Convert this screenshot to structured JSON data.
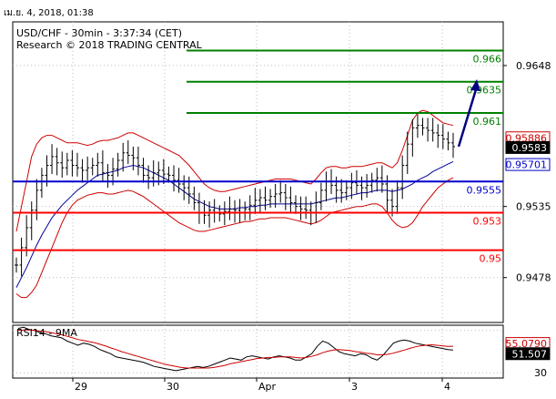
{
  "header": {
    "datetime": "เม.ย. 4, 2018, 01:38",
    "instrument": "USD/CHF - 30min - 3:37:34 (CET)",
    "copyright": "Research © 2018 TRADING CENTRAL"
  },
  "chart_data": [
    {
      "type": "candlestick",
      "title": "USD/CHF - 30min - 3:37:34 (CET)",
      "ylim": [
        0.9442,
        0.9683
      ],
      "x_tick_labels": [
        "29",
        "30",
        "Apr",
        "3",
        "4"
      ],
      "y_tick_labels": [
        "0.9648",
        "0.9535",
        "0.9478"
      ],
      "y_ticks": [
        0.9648,
        0.9535,
        0.9478
      ],
      "grid": true,
      "levels": [
        {
          "label": "0.966",
          "value": 0.966,
          "color": "#008000"
        },
        {
          "label": "0.9635",
          "value": 0.9635,
          "color": "#008000"
        },
        {
          "label": "0.961",
          "value": 0.961,
          "color": "#008000"
        },
        {
          "label": "0.9555",
          "value": 0.9555,
          "color": "#0000cc"
        },
        {
          "label": "0.953",
          "value": 0.953,
          "color": "#ff0000"
        },
        {
          "label": "0.95",
          "value": 0.95,
          "color": "#ff0000"
        }
      ],
      "price_tags": [
        {
          "label": "0.95886",
          "value": 0.95886,
          "bg": "#ffffff",
          "fg": "#cc0000",
          "border": "#cc0000"
        },
        {
          "label": "0.9583",
          "value": 0.9583,
          "bg": "#000000",
          "fg": "#ffffff",
          "border": "#000000"
        },
        {
          "label": "0.95701",
          "value": 0.95701,
          "bg": "#ffffff",
          "fg": "#0000cc",
          "border": "#0000cc"
        }
      ],
      "close_series": [
        0.9488,
        0.9502,
        0.9518,
        0.9532,
        0.9548,
        0.956,
        0.9568,
        0.9575,
        0.957,
        0.9566,
        0.9572,
        0.9568,
        0.9566,
        0.9564,
        0.9566,
        0.9568,
        0.957,
        0.9562,
        0.956,
        0.9565,
        0.9572,
        0.9578,
        0.9576,
        0.9574,
        0.9568,
        0.956,
        0.9558,
        0.9562,
        0.9564,
        0.9561,
        0.956,
        0.9556,
        0.9553,
        0.955,
        0.9545,
        0.9538,
        0.953,
        0.9528,
        0.9532,
        0.953,
        0.9529,
        0.9531,
        0.9533,
        0.9532,
        0.953,
        0.9533,
        0.9536,
        0.954,
        0.9542,
        0.954,
        0.9543,
        0.9545,
        0.9546,
        0.9542,
        0.9538,
        0.9535,
        0.9533,
        0.9532,
        0.953,
        0.9538,
        0.9548,
        0.9555,
        0.9552,
        0.9548,
        0.9546,
        0.955,
        0.9554,
        0.9552,
        0.955,
        0.9552,
        0.9556,
        0.9558,
        0.9553,
        0.954,
        0.9535,
        0.955,
        0.9568,
        0.9585,
        0.9598,
        0.96,
        0.9598,
        0.9596,
        0.9594,
        0.9592,
        0.9589,
        0.9586,
        0.9583
      ],
      "moving_average": [
        0.947,
        0.9478,
        0.9486,
        0.9495,
        0.9504,
        0.9512,
        0.9519,
        0.9526,
        0.9531,
        0.9536,
        0.954,
        0.9544,
        0.9548,
        0.9551,
        0.9554,
        0.9557,
        0.956,
        0.9561,
        0.9562,
        0.9563,
        0.9564,
        0.9566,
        0.9567,
        0.9568,
        0.9567,
        0.9566,
        0.9564,
        0.9562,
        0.956,
        0.9558,
        0.9556,
        0.9553,
        0.955,
        0.9547,
        0.9544,
        0.9541,
        0.9539,
        0.9537,
        0.9535,
        0.9534,
        0.9533,
        0.9533,
        0.9533,
        0.9533,
        0.9534,
        0.9534,
        0.9535,
        0.9535,
        0.9536,
        0.9536,
        0.9537,
        0.9537,
        0.9537,
        0.9537,
        0.9537,
        0.9537,
        0.9537,
        0.9537,
        0.9537,
        0.9538,
        0.9539,
        0.954,
        0.9541,
        0.9542,
        0.9542,
        0.9543,
        0.9544,
        0.9545,
        0.9546,
        0.9546,
        0.9547,
        0.9548,
        0.9548,
        0.9548,
        0.9547,
        0.9548,
        0.9549,
        0.9551,
        0.9553,
        0.9556,
        0.9558,
        0.956,
        0.9563,
        0.9565,
        0.9567,
        0.9569,
        0.9571
      ],
      "bands_upper": [
        0.9515,
        0.9535,
        0.9555,
        0.9575,
        0.9585,
        0.959,
        0.9592,
        0.9592,
        0.959,
        0.9588,
        0.9586,
        0.9586,
        0.9586,
        0.9585,
        0.9584,
        0.9585,
        0.9587,
        0.9588,
        0.9588,
        0.9589,
        0.959,
        0.9592,
        0.9594,
        0.9594,
        0.9592,
        0.959,
        0.9588,
        0.9586,
        0.9584,
        0.9582,
        0.958,
        0.9578,
        0.9576,
        0.9572,
        0.9568,
        0.9563,
        0.9558,
        0.9553,
        0.955,
        0.9548,
        0.9547,
        0.9547,
        0.9548,
        0.9549,
        0.955,
        0.9551,
        0.9552,
        0.9553,
        0.9554,
        0.9555,
        0.9556,
        0.9557,
        0.9557,
        0.9557,
        0.9557,
        0.9556,
        0.9555,
        0.9554,
        0.9553,
        0.9557,
        0.9562,
        0.9566,
        0.9567,
        0.9567,
        0.9566,
        0.9566,
        0.9567,
        0.9567,
        0.9567,
        0.9568,
        0.9569,
        0.957,
        0.957,
        0.9568,
        0.9566,
        0.957,
        0.958,
        0.9592,
        0.9604,
        0.961,
        0.9612,
        0.9611,
        0.9608,
        0.9605,
        0.9602,
        0.9601,
        0.96
      ],
      "bands_lower": [
        0.9465,
        0.9462,
        0.9462,
        0.9466,
        0.9472,
        0.9482,
        0.9492,
        0.9502,
        0.9512,
        0.9522,
        0.953,
        0.9536,
        0.954,
        0.9542,
        0.9544,
        0.9545,
        0.9546,
        0.9546,
        0.9545,
        0.9545,
        0.9546,
        0.9547,
        0.9548,
        0.9547,
        0.9545,
        0.9543,
        0.954,
        0.9537,
        0.9534,
        0.9531,
        0.9528,
        0.9525,
        0.9522,
        0.952,
        0.9518,
        0.9516,
        0.9515,
        0.9515,
        0.9516,
        0.9517,
        0.9518,
        0.9519,
        0.952,
        0.9521,
        0.9522,
        0.9523,
        0.9523,
        0.9524,
        0.9525,
        0.9525,
        0.9526,
        0.9526,
        0.9526,
        0.9526,
        0.9525,
        0.9524,
        0.9523,
        0.9522,
        0.9521,
        0.9522,
        0.9524,
        0.9527,
        0.953,
        0.9531,
        0.9532,
        0.9533,
        0.9534,
        0.9535,
        0.9535,
        0.9536,
        0.9537,
        0.9537,
        0.9535,
        0.953,
        0.9524,
        0.952,
        0.9518,
        0.9519,
        0.9522,
        0.9528,
        0.9535,
        0.954,
        0.9545,
        0.955,
        0.9553,
        0.9556,
        0.9558
      ],
      "forecast_arrow": {
        "from": 0.9583,
        "to": 0.9637
      }
    },
    {
      "type": "line",
      "title": "RSI14 - 9MA",
      "ylim": [
        25,
        75
      ],
      "y_tick_labels": [
        "30"
      ],
      "y_ticks": [
        30
      ],
      "series": [
        {
          "name": "RSI14",
          "color": "#000000",
          "values": [
            72,
            73,
            71,
            70,
            68,
            67,
            65,
            64,
            63,
            60,
            58,
            56,
            58,
            57,
            55,
            52,
            50,
            48,
            45,
            44,
            43,
            42,
            41,
            40,
            38,
            36,
            35,
            34,
            33,
            32,
            33,
            34,
            35,
            36,
            35,
            36,
            38,
            40,
            42,
            44,
            43,
            42,
            45,
            46,
            45,
            44,
            43,
            45,
            46,
            45,
            44,
            42,
            42,
            45,
            48,
            55,
            60,
            58,
            54,
            50,
            48,
            47,
            46,
            48,
            47,
            44,
            42,
            46,
            52,
            58,
            60,
            61,
            60,
            58,
            57,
            56,
            55,
            54,
            53,
            52,
            51.507
          ]
        },
        {
          "name": "9MA",
          "color": "#cc0000",
          "values": [
            70,
            70.5,
            70.5,
            70,
            69.5,
            69,
            68,
            67,
            66,
            64.5,
            63,
            61.5,
            60.5,
            59.5,
            58.5,
            57,
            55.5,
            53.5,
            52,
            50,
            48.5,
            47,
            45.5,
            44,
            42.5,
            41,
            39.5,
            38,
            37,
            36,
            35,
            34.5,
            34.5,
            34.5,
            34.5,
            34.5,
            35,
            36,
            37,
            38.5,
            39.5,
            40.5,
            41.5,
            42.5,
            43.5,
            44,
            44.5,
            44.5,
            45,
            45,
            45,
            44.5,
            44,
            44.5,
            45.5,
            47,
            49,
            50.5,
            51.5,
            52,
            51.5,
            51,
            50,
            49.5,
            48.5,
            48,
            47,
            47,
            47.5,
            48.5,
            50,
            51.5,
            53,
            54.5,
            55.5,
            56,
            56.5,
            56,
            55.5,
            55,
            55.079
          ]
        }
      ],
      "price_tags": [
        {
          "label": "55.0790",
          "value": 55.079,
          "bg": "#ffffff",
          "fg": "#cc0000",
          "border": "#cc0000"
        },
        {
          "label": "51.507",
          "value": 51.507,
          "bg": "#000000",
          "fg": "#ffffff",
          "border": "#000000"
        }
      ]
    }
  ]
}
